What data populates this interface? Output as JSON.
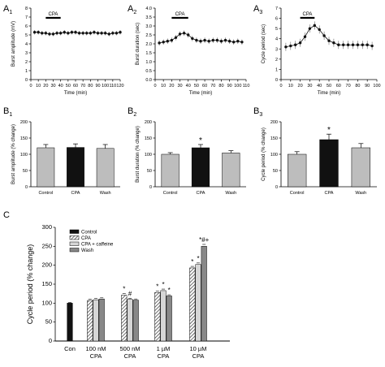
{
  "panel_labels": {
    "A1": {
      "main": "A",
      "sub": "1"
    },
    "A2": {
      "main": "A",
      "sub": "2"
    },
    "A3": {
      "main": "A",
      "sub": "3"
    },
    "B1": {
      "main": "B",
      "sub": "1"
    },
    "B2": {
      "main": "B",
      "sub": "2"
    },
    "B3": {
      "main": "B",
      "sub": "3"
    },
    "C": {
      "main": "C",
      "sub": ""
    }
  },
  "colors": {
    "trace": "#111111",
    "bar_gray": "#bdbdbd",
    "bar_black": "#111111",
    "control": "#111111",
    "cpa_hatch": "#444444",
    "cpa_caffeine": "#d6d6d6",
    "wash": "#888888"
  },
  "chart_data": [
    {
      "id": "A1",
      "type": "line",
      "xlabel": "Time (min)",
      "ylabel": "Burst amplitude (mV)",
      "xlim": [
        0,
        120
      ],
      "ylim": [
        0,
        8
      ],
      "xticks": [
        "0",
        "10",
        "20",
        "30",
        "40",
        "50",
        "60",
        "70",
        "80",
        "90",
        "100",
        "110",
        "120"
      ],
      "yticks": [
        "0",
        "1",
        "2",
        "3",
        "4",
        "5",
        "6",
        "7",
        "8"
      ],
      "annotation": {
        "text": "CPA",
        "x_start": 20,
        "x_end": 40
      },
      "series": [
        {
          "x": [
            5,
            10,
            15,
            20,
            25,
            30,
            35,
            40,
            45,
            50,
            55,
            60,
            65,
            70,
            75,
            80,
            85,
            90,
            95,
            100,
            105,
            110,
            115,
            120
          ],
          "values": [
            5.3,
            5.3,
            5.2,
            5.2,
            5.1,
            5.1,
            5.2,
            5.2,
            5.3,
            5.2,
            5.3,
            5.3,
            5.2,
            5.2,
            5.2,
            5.2,
            5.3,
            5.2,
            5.2,
            5.2,
            5.1,
            5.2,
            5.2,
            5.3
          ],
          "error": 0.25
        }
      ]
    },
    {
      "id": "A2",
      "type": "line",
      "xlabel": "Time (min)",
      "ylabel": "Burst duration (sec)",
      "xlim": [
        0,
        110
      ],
      "ylim": [
        0,
        4
      ],
      "xticks": [
        "0",
        "10",
        "20",
        "30",
        "40",
        "50",
        "60",
        "70",
        "80",
        "90",
        "100",
        "110"
      ],
      "yticks": [
        "0.0",
        "0.5",
        "1.0",
        "1.5",
        "2.0",
        "2.5",
        "3.0",
        "3.5",
        "4.0"
      ],
      "annotation": {
        "text": "CPA",
        "x_start": 20,
        "x_end": 40
      },
      "series": [
        {
          "x": [
            5,
            10,
            15,
            20,
            25,
            30,
            35,
            40,
            45,
            50,
            55,
            60,
            65,
            70,
            75,
            80,
            85,
            90,
            95,
            100,
            105
          ],
          "values": [
            2.05,
            2.1,
            2.15,
            2.2,
            2.35,
            2.55,
            2.6,
            2.5,
            2.3,
            2.2,
            2.15,
            2.2,
            2.15,
            2.2,
            2.2,
            2.15,
            2.2,
            2.15,
            2.1,
            2.15,
            2.1
          ],
          "error": 0.15
        }
      ]
    },
    {
      "id": "A3",
      "type": "line",
      "xlabel": "Time (min)",
      "ylabel": "Cycle period (sec)",
      "xlim": [
        0,
        100
      ],
      "ylim": [
        0,
        7
      ],
      "xticks": [
        "0",
        "10",
        "20",
        "30",
        "40",
        "50",
        "60",
        "70",
        "80",
        "90",
        "100"
      ],
      "yticks": [
        "0",
        "1",
        "2",
        "3",
        "4",
        "5",
        "6",
        "7"
      ],
      "annotation": {
        "text": "CPA",
        "x_start": 20,
        "x_end": 35
      },
      "series": [
        {
          "x": [
            5,
            10,
            15,
            20,
            25,
            30,
            35,
            40,
            45,
            50,
            55,
            60,
            65,
            70,
            75,
            80,
            85,
            90,
            95
          ],
          "values": [
            3.2,
            3.3,
            3.4,
            3.6,
            4.2,
            5.0,
            5.3,
            4.9,
            4.3,
            3.8,
            3.6,
            3.4,
            3.4,
            3.4,
            3.4,
            3.4,
            3.4,
            3.4,
            3.3
          ],
          "error": 0.4
        }
      ]
    },
    {
      "id": "B1",
      "type": "bar",
      "categories": [
        "Control",
        "CPA",
        "Wash"
      ],
      "values": [
        120,
        121,
        118
      ],
      "errors": [
        10,
        11,
        12
      ],
      "ylabel": "Burst amplitude (% change)",
      "ylim": [
        0,
        200
      ],
      "yticks": [
        "0",
        "50",
        "100",
        "150",
        "200"
      ],
      "colors": [
        "#bdbdbd",
        "#111111",
        "#bdbdbd"
      ],
      "significance": [
        "",
        "",
        ""
      ]
    },
    {
      "id": "B2",
      "type": "bar",
      "categories": [
        "Control",
        "CPA",
        "Wash"
      ],
      "values": [
        100,
        120,
        104
      ],
      "errors": [
        5,
        10,
        7
      ],
      "ylabel": "Burst duration (% change)",
      "ylim": [
        0,
        200
      ],
      "yticks": [
        "0",
        "50",
        "100",
        "150",
        "200"
      ],
      "colors": [
        "#bdbdbd",
        "#111111",
        "#bdbdbd"
      ],
      "significance": [
        "",
        "*",
        ""
      ]
    },
    {
      "id": "B3",
      "type": "bar",
      "categories": [
        "Control",
        "CPA",
        "Wash"
      ],
      "values": [
        100,
        145,
        120
      ],
      "errors": [
        8,
        17,
        13
      ],
      "ylabel": "Cycle period (% change)",
      "ylim": [
        0,
        200
      ],
      "yticks": [
        "0",
        "50",
        "100",
        "150",
        "200"
      ],
      "colors": [
        "#bdbdbd",
        "#111111",
        "#bdbdbd"
      ],
      "significance": [
        "",
        "*",
        ""
      ]
    },
    {
      "id": "C",
      "type": "bar",
      "ylabel": "Cycle period (% change)",
      "ylim": [
        0,
        300
      ],
      "yticks": [
        "0",
        "50",
        "100",
        "150",
        "200",
        "250",
        "300"
      ],
      "legend": {
        "position": "top-left",
        "entries": [
          "Control",
          "CPA",
          "CPA + caffeine",
          "Wash"
        ]
      },
      "groups": [
        {
          "label1": "Con",
          "label2": "",
          "bars": [
            {
              "series": "Control",
              "value": 100,
              "error": 2,
              "mark": ""
            }
          ]
        },
        {
          "label1": "100 nM",
          "label2": "CPA",
          "bars": [
            {
              "series": "CPA",
              "value": 107,
              "error": 3,
              "mark": ""
            },
            {
              "series": "CPA + caffeine",
              "value": 109,
              "error": 3,
              "mark": ""
            },
            {
              "series": "Wash",
              "value": 111,
              "error": 3,
              "mark": ""
            }
          ]
        },
        {
          "label1": "500 nM",
          "label2": "CPA",
          "bars": [
            {
              "series": "CPA",
              "value": 121,
              "error": 4,
              "mark": "*"
            },
            {
              "series": "CPA + caffeine",
              "value": 110,
              "error": 3,
              "mark": "#"
            },
            {
              "series": "Wash",
              "value": 108,
              "error": 3,
              "mark": ""
            }
          ]
        },
        {
          "label1": "1 µM",
          "label2": "CPA",
          "bars": [
            {
              "series": "CPA",
              "value": 128,
              "error": 4,
              "mark": "*"
            },
            {
              "series": "CPA + caffeine",
              "value": 133,
              "error": 4,
              "mark": "*"
            },
            {
              "series": "Wash",
              "value": 119,
              "error": 3,
              "mark": "*"
            }
          ]
        },
        {
          "label1": "10 µM",
          "label2": "CPA",
          "bars": [
            {
              "series": "CPA",
              "value": 193,
              "error": 4,
              "mark": "*"
            },
            {
              "series": "CPA + caffeine",
              "value": 202,
              "error": 4,
              "mark": "*"
            },
            {
              "series": "Wash",
              "value": 250,
              "error": 5,
              "mark": "*#+"
            }
          ]
        }
      ]
    }
  ]
}
